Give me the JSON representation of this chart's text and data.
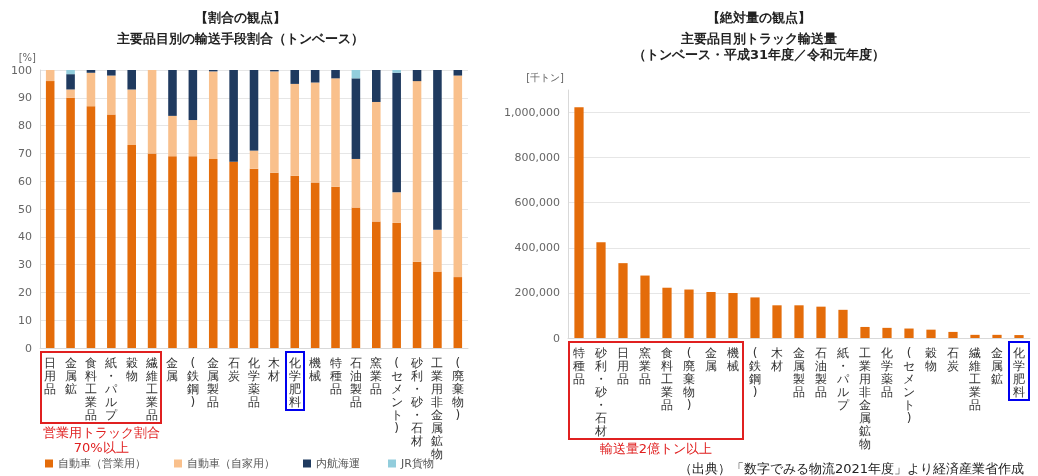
{
  "chart_data": [
    {
      "type": "bar",
      "title": "【割合の観点】",
      "subtitle": "主要品目別の輸送手段割合（トンベース）",
      "ylabel": "[%]",
      "stacked": true,
      "grid": "y",
      "legend": "bottom left",
      "categories": [
        "日用品",
        "金属鉱",
        "食料工業品",
        "紙・パルプ",
        "穀物",
        "繊維工業品",
        "金属",
        "(鉄鋼)",
        "金属製品",
        "石炭",
        "化学薬品",
        "木材",
        "化学肥料",
        "機械",
        "特種品",
        "石油製品",
        "窯業品",
        "(セメント)",
        "砂利・砂・石材",
        "工業用非金属鉱物",
        "(廃棄物)"
      ],
      "series": [
        {
          "name": "自動車（営業用）",
          "color": "#e46c0a",
          "values": [
            96,
            90,
            87,
            84,
            73,
            70,
            69,
            69,
            68,
            67,
            64.5,
            63,
            62,
            59.5,
            58,
            50.5,
            45.5,
            45,
            31,
            27.5,
            25.5
          ]
        },
        {
          "name": "自動車（自家用）",
          "color": "#f9c08c",
          "values": [
            4,
            3,
            12,
            14,
            20,
            30,
            14.5,
            13,
            31.5,
            0,
            6.5,
            36.5,
            33,
            36,
            39,
            17.5,
            43,
            11,
            65,
            15,
            72.5
          ]
        },
        {
          "name": "内航海運",
          "color": "#1f3a5f",
          "values": [
            0,
            5.5,
            1,
            2,
            7,
            0,
            16.5,
            18,
            0.5,
            33,
            29,
            0.5,
            5,
            4.5,
            3,
            29,
            11.5,
            43,
            4,
            57.5,
            2
          ]
        },
        {
          "name": "JR貨物",
          "color": "#92cddc",
          "values": [
            0,
            1.5,
            0,
            0,
            0,
            0,
            0,
            0,
            0,
            0,
            0,
            0,
            0,
            0,
            0,
            3,
            0,
            1,
            0,
            0,
            0
          ]
        }
      ],
      "ylim": [
        0,
        100
      ],
      "yticks": [
        0,
        10,
        20,
        30,
        40,
        50,
        60,
        70,
        80,
        90,
        100
      ],
      "annotations": [
        "営業用トラック割合70%以上"
      ]
    },
    {
      "type": "bar",
      "title": "【絶対量の観点】",
      "subtitle": "主要品目別トラック輸送量",
      "ylabel": "[千トン]",
      "grid": "y",
      "color": "#e46c0a",
      "categories": [
        "特種品",
        "砂利・砂・石材",
        "日用品",
        "窯業品",
        "食料工業品",
        "(廃棄物)",
        "金属",
        "機械",
        "(鉄鋼)",
        "木材",
        "金属製品",
        "石油製品",
        "紙・パルプ",
        "工業用非金属鉱物",
        "化学薬品",
        "(セメント)",
        "穀物",
        "石炭",
        "繊維工業品",
        "金属鉱",
        "化学肥料"
      ],
      "values": [
        1024000,
        425000,
        332000,
        277000,
        223000,
        215000,
        204000,
        200000,
        180000,
        145000,
        145000,
        139000,
        125000,
        49000,
        45000,
        42000,
        37000,
        27000,
        14000,
        14000,
        13000
      ],
      "ylim": [
        0,
        1100000
      ],
      "yticks": [
        0,
        {
          "value": 200000,
          "label": "200,000"
        },
        {
          "value": 400000,
          "label": "400,000"
        },
        {
          "value": 600000,
          "label": "600,000"
        },
        {
          "value": 800000,
          "label": "800,000"
        },
        {
          "value": 1000000,
          "label": "1,000,000"
        }
      ],
      "annotations": [
        "輸送量2億トン以上",
        "（トンベース・平成31年度／令和元年度）",
        "（出典）「数字でみる物流2021年度」より経済産業省作成"
      ]
    }
  ]
}
